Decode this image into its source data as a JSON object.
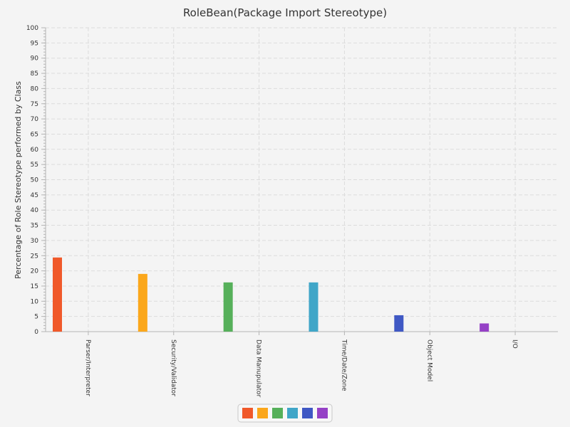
{
  "chart_data": {
    "type": "bar",
    "title": "RoleBean(Package Import Stereotype)",
    "xlabel": "",
    "ylabel": "Percentage of Role Stereotype performed by Class",
    "ylim": [
      0,
      100
    ],
    "ytick_step": 5,
    "categories": [
      "Parser/Interpreter",
      "Security/Validator",
      "Data Manupulator",
      "Time/Date/Zone",
      "Object Model",
      "I/O"
    ],
    "values": [
      24.4,
      19.0,
      16.2,
      16.2,
      5.4,
      2.7
    ],
    "colors": [
      "#f0592a",
      "#fba71b",
      "#56b05a",
      "#40a6c8",
      "#3f58c4",
      "#9541c6"
    ],
    "grid": true,
    "legend_position": "bottom-center"
  }
}
